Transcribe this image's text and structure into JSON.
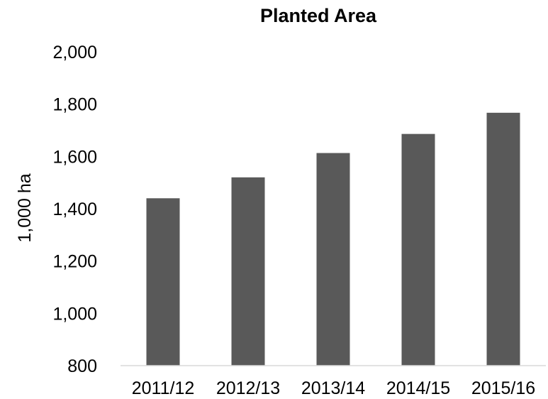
{
  "chart_data": {
    "type": "bar",
    "title": "Planted Area",
    "xlabel": "",
    "ylabel": "1,000 ha",
    "categories": [
      "2011/12",
      "2012/13",
      "2013/14",
      "2014/15",
      "2015/16"
    ],
    "values": [
      1440,
      1520,
      1613,
      1686,
      1767
    ],
    "ylim": [
      800,
      2000
    ],
    "yticks": [
      "800",
      "1,000",
      "1,200",
      "1,400",
      "1,600",
      "1,800",
      "2,000"
    ],
    "grid": false,
    "legend": "none",
    "bar_color": "#595959"
  }
}
